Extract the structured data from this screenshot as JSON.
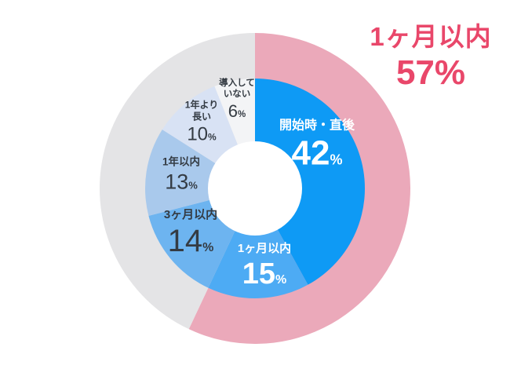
{
  "background_color": "#ffffff",
  "title": {
    "label": "1ヶ月以内",
    "value": 57,
    "unit": "%",
    "color": "#e9476a"
  },
  "chart_data": {
    "type": "pie",
    "style": "donut",
    "unit": "%",
    "start_angle": "top",
    "direction": "clockwise",
    "segments": [
      {
        "label": "開始時・直後",
        "value": 42,
        "color": "#0e9af5",
        "text_color": "#ffffff"
      },
      {
        "label": "1ヶ月以内",
        "value": 15,
        "color": "#4dabf4",
        "text_color": "#ffffff"
      },
      {
        "label": "3ヶ月以内",
        "value": 14,
        "color": "#6db4f0",
        "text_color": "#343b43"
      },
      {
        "label": "1年以内",
        "value": 13,
        "color": "#a9c9ec",
        "text_color": "#343b43"
      },
      {
        "label": "1年より長い",
        "value": 10,
        "color": "#d8e2f4",
        "text_color": "#343b43"
      },
      {
        "label": "導入していない",
        "value": 6,
        "color": "#f3f4f6",
        "text_color": "#343b43"
      }
    ],
    "outer_ring": {
      "highlight_label": "1ヶ月以内",
      "highlight_value": 57,
      "highlight_color": "#eba9ba",
      "rest_value": 43,
      "rest_color": "#e4e4e6"
    }
  }
}
